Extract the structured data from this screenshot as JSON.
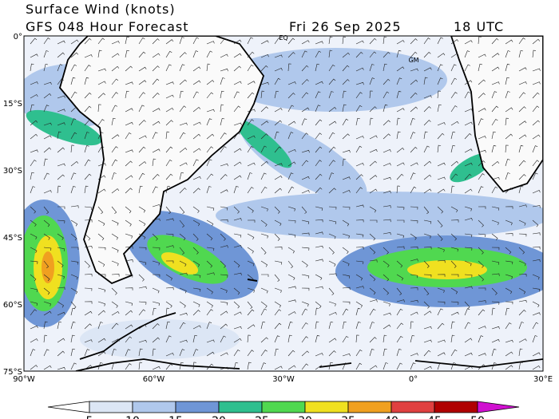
{
  "header": {
    "title": "Surface Wind (knots)",
    "subtitle": "GFS 048 Hour Forecast",
    "date": "Fri 26 Sep 2025",
    "time": "18 UTC"
  },
  "map": {
    "lat_labels": [
      "0°",
      "15°S",
      "30°S",
      "45°S",
      "60°S",
      "75°S"
    ],
    "lon_labels": [
      "90°W",
      "60°W",
      "30°W",
      "0°",
      "30°E"
    ],
    "markers": [
      "EQ",
      "GM"
    ]
  },
  "colorbar": {
    "ticks": [
      5,
      10,
      15,
      20,
      25,
      30,
      35,
      40,
      45,
      50
    ],
    "colors": [
      "#ffffff",
      "#dce6f5",
      "#b0c8ec",
      "#6f96d6",
      "#2fbf8f",
      "#50d850",
      "#f0e020",
      "#f0a020",
      "#e04040",
      "#b00000",
      "#d010d0"
    ]
  }
}
